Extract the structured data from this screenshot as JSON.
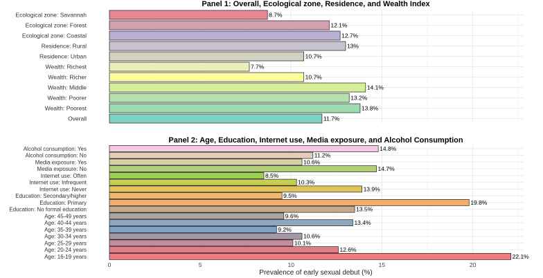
{
  "chart_data": [
    {
      "type": "bar",
      "orientation": "horizontal",
      "title": "Panel 1: Overall, Ecological zone, Residence, and Wealth Index",
      "xlabel": "",
      "xlim": [
        0,
        22.8
      ],
      "categories": [
        "Ecological zone: Savannah",
        "Ecological zone: Forest",
        "Ecological zone: Coastal",
        "Residence: Rural",
        "Residence: Urban",
        "Wealth: Richest",
        "Wealth: Richer",
        "Wealth: Middle",
        "Wealth: Poorer",
        "Wealth: Poorest",
        "Overall"
      ],
      "values": [
        8.7,
        12.1,
        12.7,
        13,
        10.7,
        7.7,
        10.7,
        14.1,
        13.2,
        13.8,
        11.7
      ],
      "labels": [
        "8.7%",
        "12.1%",
        "12.7%",
        "13%",
        "10.7%",
        "7.7%",
        "10.7%",
        "14.1%",
        "13.2%",
        "13.8%",
        "11.7%"
      ],
      "colors": [
        "#e8878f",
        "#d4a0ad",
        "#b9aed3",
        "#c8c3cf",
        "#d0d1c0",
        "#ecedb8",
        "#fdfd9f",
        "#d8ef9a",
        "#b3e2ac",
        "#9edbb0",
        "#7fd3c3"
      ]
    },
    {
      "type": "bar",
      "orientation": "horizontal",
      "title": "Panel 2: Age, Education, Internet use, Media exposure, and Alcohol Consumption",
      "xlabel": "Prevalence of early sexual debut (%)",
      "xlim": [
        0,
        22.8
      ],
      "xticks": [
        "0",
        "5",
        "10",
        "15",
        "20"
      ],
      "categories": [
        "Alcohol consumption: Yes",
        "Alcohol consumption: No",
        "Media exposure: Yes",
        "Media exposure: No",
        "Internet use: Often",
        "Internet use: Infrequent",
        "Internet use: Never",
        "Education: Secondary/higher",
        "Education: Primary",
        "Education: No formal education",
        "Age: 45-49 years",
        "Age: 40-44 years",
        "Age: 35-39 years",
        "Age: 30-34 years",
        "Age: 25-29 years",
        "Age: 20-24 years",
        "Age: 16-19 years"
      ],
      "values": [
        14.8,
        11.2,
        10.6,
        14.7,
        8.5,
        10.3,
        13.9,
        9.5,
        19.8,
        13.5,
        9.6,
        13.4,
        9.2,
        10.6,
        10.1,
        12.6,
        22.1
      ],
      "labels": [
        "14.8%",
        "11.2%",
        "10.6%",
        "14.7%",
        "8.5%",
        "10.3%",
        "13.9%",
        "9.5%",
        "19.8%",
        "13.5%",
        "9.6%",
        "13.4%",
        "9.2%",
        "10.6%",
        "10.1%",
        "12.6%",
        "22.1%"
      ],
      "colors": [
        "#f8c9e3",
        "#e3cbb7",
        "#d6d1aa",
        "#b2d078",
        "#9ccf55",
        "#c6cf52",
        "#dfc45c",
        "#efb76a",
        "#f3ad6e",
        "#c7a98a",
        "#a8a8a2",
        "#8ea6be",
        "#7ea1c4",
        "#a497a8",
        "#c9889b",
        "#e07f84",
        "#f27c7c"
      ]
    }
  ]
}
